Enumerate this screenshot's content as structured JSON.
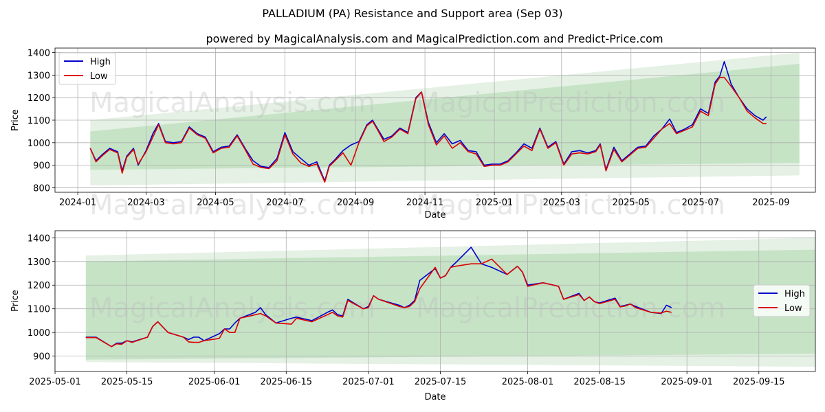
{
  "title": "PALLADIUM (PA) Resistance and Support area (Sep 03)",
  "subtitle": "powered by MagicalAnalysis.com and MagicalPrediction.com and Predict-Price.com",
  "watermarks": [
    "MagicalAnalysis.com",
    "MagicalPrediction.com"
  ],
  "colors": {
    "high": "#0000cc",
    "low": "#dd0000",
    "band_outer": "#e4f1e4",
    "band_inner": "#c6e3c6",
    "grid": "#b0b0b0"
  },
  "chart_data": [
    {
      "type": "line",
      "xlabel": "Date",
      "ylabel": "Price",
      "x_ticks": [
        "2024-01",
        "2024-03",
        "2024-05",
        "2024-07",
        "2024-09",
        "2024-11",
        "2025-01",
        "2025-03",
        "2025-05",
        "2025-07",
        "2025-09"
      ],
      "y_ticks": [
        "800",
        "900",
        "1000",
        "1100",
        "1200",
        "1300",
        "1400"
      ],
      "xlim": [
        "2023-12-12",
        "2025-10-10"
      ],
      "ylim": [
        780,
        1420
      ],
      "grid": true,
      "legend": "top-left",
      "bands": [
        {
          "name": "outer",
          "x": [
            "2024-01-12",
            "2025-09-26"
          ],
          "upper": [
            1100,
            1400
          ],
          "lower": [
            810,
            855
          ]
        },
        {
          "name": "inner",
          "x": [
            "2024-01-12",
            "2025-09-26"
          ],
          "upper": [
            1050,
            1350
          ],
          "lower": [
            880,
            910
          ]
        }
      ],
      "series": [
        {
          "name": "High",
          "x": [
            "2024-01-12",
            "2024-01-17",
            "2024-01-22",
            "2024-01-29",
            "2024-02-05",
            "2024-02-09",
            "2024-02-13",
            "2024-02-19",
            "2024-02-23",
            "2024-03-01",
            "2024-03-07",
            "2024-03-12",
            "2024-03-18",
            "2024-03-25",
            "2024-04-01",
            "2024-04-08",
            "2024-04-15",
            "2024-04-22",
            "2024-04-29",
            "2024-05-06",
            "2024-05-13",
            "2024-05-20",
            "2024-05-27",
            "2024-06-03",
            "2024-06-10",
            "2024-06-17",
            "2024-06-24",
            "2024-07-01",
            "2024-07-08",
            "2024-07-15",
            "2024-07-22",
            "2024-07-29",
            "2024-08-05",
            "2024-08-09",
            "2024-08-14",
            "2024-08-21",
            "2024-08-28",
            "2024-09-04",
            "2024-09-11",
            "2024-09-16",
            "2024-09-20",
            "2024-09-26",
            "2024-10-03",
            "2024-10-10",
            "2024-10-17",
            "2024-10-24",
            "2024-10-29",
            "2024-11-04",
            "2024-11-11",
            "2024-11-18",
            "2024-11-25",
            "2024-12-02",
            "2024-12-09",
            "2024-12-16",
            "2024-12-23",
            "2024-12-30",
            "2025-01-06",
            "2025-01-13",
            "2025-01-20",
            "2025-01-27",
            "2025-02-03",
            "2025-02-10",
            "2025-02-17",
            "2025-02-24",
            "2025-03-03",
            "2025-03-10",
            "2025-03-17",
            "2025-03-24",
            "2025-03-31",
            "2025-04-04",
            "2025-04-09",
            "2025-04-16",
            "2025-04-23",
            "2025-04-30",
            "2025-05-07",
            "2025-05-14",
            "2025-05-21",
            "2025-05-28",
            "2025-06-04",
            "2025-06-10",
            "2025-06-17",
            "2025-06-24",
            "2025-07-01",
            "2025-07-08",
            "2025-07-14",
            "2025-07-18",
            "2025-07-22",
            "2025-07-28",
            "2025-08-04",
            "2025-08-11",
            "2025-08-18",
            "2025-08-25",
            "2025-08-28"
          ],
          "values": [
            975,
            920,
            945,
            975,
            960,
            875,
            940,
            975,
            900,
            965,
            1040,
            1085,
            1005,
            1000,
            1005,
            1070,
            1040,
            1025,
            960,
            980,
            985,
            1035,
            975,
            920,
            895,
            890,
            930,
            1045,
            960,
            930,
            900,
            915,
            830,
            900,
            925,
            965,
            990,
            1005,
            1080,
            1100,
            1065,
            1015,
            1030,
            1065,
            1045,
            1200,
            1225,
            1090,
            1000,
            1040,
            995,
            1010,
            965,
            960,
            900,
            905,
            905,
            920,
            955,
            995,
            975,
            1065,
            980,
            1005,
            905,
            960,
            965,
            955,
            965,
            995,
            880,
            980,
            920,
            950,
            980,
            985,
            1030,
            1060,
            1105,
            1045,
            1060,
            1080,
            1150,
            1130,
            1270,
            1295,
            1360,
            1260,
            1200,
            1150,
            1120,
            1100,
            1115
          ]
        },
        {
          "name": "Low",
          "x": [
            "2024-01-12",
            "2024-01-17",
            "2024-01-22",
            "2024-01-29",
            "2024-02-05",
            "2024-02-09",
            "2024-02-13",
            "2024-02-19",
            "2024-02-23",
            "2024-03-01",
            "2024-03-07",
            "2024-03-12",
            "2024-03-18",
            "2024-03-25",
            "2024-04-01",
            "2024-04-08",
            "2024-04-15",
            "2024-04-22",
            "2024-04-29",
            "2024-05-06",
            "2024-05-13",
            "2024-05-20",
            "2024-05-27",
            "2024-06-03",
            "2024-06-10",
            "2024-06-17",
            "2024-06-24",
            "2024-07-01",
            "2024-07-08",
            "2024-07-15",
            "2024-07-22",
            "2024-07-29",
            "2024-08-05",
            "2024-08-09",
            "2024-08-14",
            "2024-08-21",
            "2024-08-28",
            "2024-09-04",
            "2024-09-11",
            "2024-09-16",
            "2024-09-20",
            "2024-09-26",
            "2024-10-03",
            "2024-10-10",
            "2024-10-17",
            "2024-10-24",
            "2024-10-29",
            "2024-11-04",
            "2024-11-11",
            "2024-11-18",
            "2024-11-25",
            "2024-12-02",
            "2024-12-09",
            "2024-12-16",
            "2024-12-23",
            "2024-12-30",
            "2025-01-06",
            "2025-01-13",
            "2025-01-20",
            "2025-01-27",
            "2025-02-03",
            "2025-02-10",
            "2025-02-17",
            "2025-02-24",
            "2025-03-03",
            "2025-03-10",
            "2025-03-17",
            "2025-03-24",
            "2025-03-31",
            "2025-04-04",
            "2025-04-09",
            "2025-04-16",
            "2025-04-23",
            "2025-04-30",
            "2025-05-07",
            "2025-05-14",
            "2025-05-21",
            "2025-05-28",
            "2025-06-04",
            "2025-06-10",
            "2025-06-17",
            "2025-06-24",
            "2025-07-01",
            "2025-07-08",
            "2025-07-14",
            "2025-07-18",
            "2025-07-22",
            "2025-07-28",
            "2025-08-04",
            "2025-08-11",
            "2025-08-18",
            "2025-08-25",
            "2025-08-28"
          ],
          "values": [
            975,
            915,
            940,
            970,
            955,
            865,
            935,
            970,
            905,
            960,
            1025,
            1080,
            1000,
            995,
            1000,
            1065,
            1035,
            1020,
            955,
            975,
            980,
            1030,
            970,
            905,
            890,
            885,
            920,
            1035,
            950,
            910,
            895,
            905,
            825,
            895,
            920,
            955,
            900,
            1000,
            1075,
            1095,
            1060,
            1005,
            1025,
            1060,
            1040,
            1195,
            1225,
            1080,
            990,
            1030,
            975,
            1000,
            960,
            950,
            895,
            900,
            900,
            915,
            950,
            985,
            965,
            1060,
            975,
            1000,
            900,
            950,
            955,
            950,
            960,
            990,
            875,
            970,
            915,
            945,
            975,
            980,
            1020,
            1060,
            1085,
            1040,
            1055,
            1070,
            1140,
            1120,
            1260,
            1290,
            1290,
            1250,
            1200,
            1140,
            1110,
            1085,
            1085
          ]
        }
      ]
    },
    {
      "type": "line",
      "xlabel": "Date",
      "ylabel": "Price",
      "x_ticks": [
        "2025-05-01",
        "2025-05-15",
        "2025-06-01",
        "2025-06-15",
        "2025-07-01",
        "2025-07-15",
        "2025-08-01",
        "2025-08-15",
        "2025-09-01",
        "2025-09-15"
      ],
      "y_ticks": [
        "900",
        "1000",
        "1100",
        "1200",
        "1300",
        "1400"
      ],
      "xlim": [
        "2025-05-01",
        "2025-09-26"
      ],
      "ylim": [
        835,
        1430
      ],
      "grid": true,
      "legend": "right",
      "bands": [
        {
          "name": "outer",
          "x": [
            "2025-05-07",
            "2025-09-26"
          ],
          "upper": [
            1325,
            1400
          ],
          "lower": [
            875,
            855
          ]
        },
        {
          "name": "inner",
          "x": [
            "2025-05-07",
            "2025-09-26"
          ],
          "upper": [
            1300,
            1350
          ],
          "lower": [
            885,
            910
          ]
        }
      ],
      "series": [
        {
          "name": "High",
          "x": [
            "2025-05-07",
            "2025-05-09",
            "2025-05-12",
            "2025-05-13",
            "2025-05-14",
            "2025-05-15",
            "2025-05-16",
            "2025-05-19",
            "2025-05-20",
            "2025-05-21",
            "2025-05-23",
            "2025-05-26",
            "2025-05-27",
            "2025-05-28",
            "2025-05-29",
            "2025-05-30",
            "2025-06-02",
            "2025-06-03",
            "2025-06-04",
            "2025-06-05",
            "2025-06-06",
            "2025-06-09",
            "2025-06-10",
            "2025-06-11",
            "2025-06-13",
            "2025-06-16",
            "2025-06-17",
            "2025-06-18",
            "2025-06-20",
            "2025-06-23",
            "2025-06-24",
            "2025-06-25",
            "2025-06-26",
            "2025-06-27",
            "2025-06-30",
            "2025-07-01",
            "2025-07-02",
            "2025-07-03",
            "2025-07-07",
            "2025-07-08",
            "2025-07-09",
            "2025-07-10",
            "2025-07-11",
            "2025-07-14",
            "2025-07-15",
            "2025-07-16",
            "2025-07-17",
            "2025-07-18",
            "2025-07-21",
            "2025-07-22",
            "2025-07-23",
            "2025-07-25",
            "2025-07-28",
            "2025-07-30",
            "2025-07-31",
            "2025-08-01",
            "2025-08-04",
            "2025-08-05",
            "2025-08-06",
            "2025-08-07",
            "2025-08-08",
            "2025-08-11",
            "2025-08-12",
            "2025-08-13",
            "2025-08-14",
            "2025-08-15",
            "2025-08-18",
            "2025-08-19",
            "2025-08-20",
            "2025-08-21",
            "2025-08-22",
            "2025-08-25",
            "2025-08-27",
            "2025-08-28",
            "2025-08-29"
          ],
          "values": [
            980,
            980,
            940,
            955,
            955,
            965,
            960,
            980,
            1025,
            1045,
            1000,
            980,
            970,
            980,
            980,
            965,
            995,
            1015,
            1015,
            1040,
            1060,
            1085,
            1105,
            1075,
            1040,
            1060,
            1065,
            1060,
            1050,
            1085,
            1095,
            1075,
            1070,
            1140,
            1100,
            1110,
            1155,
            1140,
            1115,
            1105,
            1115,
            1135,
            1220,
            1270,
            1230,
            1240,
            1275,
            1295,
            1360,
            1325,
            1290,
            1275,
            1245,
            1280,
            1255,
            1200,
            1210,
            1205,
            1200,
            1195,
            1140,
            1165,
            1135,
            1150,
            1130,
            1125,
            1145,
            1110,
            1115,
            1120,
            1110,
            1085,
            1080,
            1115,
            1105
          ]
        },
        {
          "name": "Low",
          "x": [
            "2025-05-07",
            "2025-05-09",
            "2025-05-12",
            "2025-05-13",
            "2025-05-14",
            "2025-05-15",
            "2025-05-16",
            "2025-05-19",
            "2025-05-20",
            "2025-05-21",
            "2025-05-23",
            "2025-05-26",
            "2025-05-27",
            "2025-05-28",
            "2025-05-29",
            "2025-05-30",
            "2025-06-02",
            "2025-06-03",
            "2025-06-04",
            "2025-06-05",
            "2025-06-06",
            "2025-06-09",
            "2025-06-10",
            "2025-06-11",
            "2025-06-13",
            "2025-06-16",
            "2025-06-17",
            "2025-06-18",
            "2025-06-20",
            "2025-06-23",
            "2025-06-24",
            "2025-06-25",
            "2025-06-26",
            "2025-06-27",
            "2025-06-30",
            "2025-07-01",
            "2025-07-02",
            "2025-07-03",
            "2025-07-07",
            "2025-07-08",
            "2025-07-09",
            "2025-07-10",
            "2025-07-11",
            "2025-07-14",
            "2025-07-15",
            "2025-07-16",
            "2025-07-17",
            "2025-07-18",
            "2025-07-21",
            "2025-07-22",
            "2025-07-23",
            "2025-07-25",
            "2025-07-28",
            "2025-07-30",
            "2025-07-31",
            "2025-08-01",
            "2025-08-04",
            "2025-08-05",
            "2025-08-06",
            "2025-08-07",
            "2025-08-08",
            "2025-08-11",
            "2025-08-12",
            "2025-08-13",
            "2025-08-14",
            "2025-08-15",
            "2025-08-18",
            "2025-08-19",
            "2025-08-20",
            "2025-08-21",
            "2025-08-22",
            "2025-08-25",
            "2025-08-27",
            "2025-08-28",
            "2025-08-29"
          ],
          "values": [
            978,
            978,
            940,
            952,
            950,
            965,
            958,
            980,
            1025,
            1045,
            1000,
            980,
            960,
            958,
            958,
            965,
            975,
            1015,
            1000,
            1000,
            1060,
            1075,
            1080,
            1070,
            1040,
            1035,
            1060,
            1055,
            1045,
            1075,
            1085,
            1070,
            1065,
            1135,
            1100,
            1105,
            1155,
            1140,
            1110,
            1105,
            1110,
            1130,
            1185,
            1275,
            1230,
            1240,
            1275,
            1280,
            1290,
            1290,
            1290,
            1310,
            1245,
            1280,
            1255,
            1195,
            1210,
            1205,
            1200,
            1195,
            1140,
            1160,
            1135,
            1150,
            1130,
            1122,
            1140,
            1108,
            1112,
            1120,
            1105,
            1085,
            1082,
            1090,
            1085
          ]
        }
      ]
    }
  ]
}
